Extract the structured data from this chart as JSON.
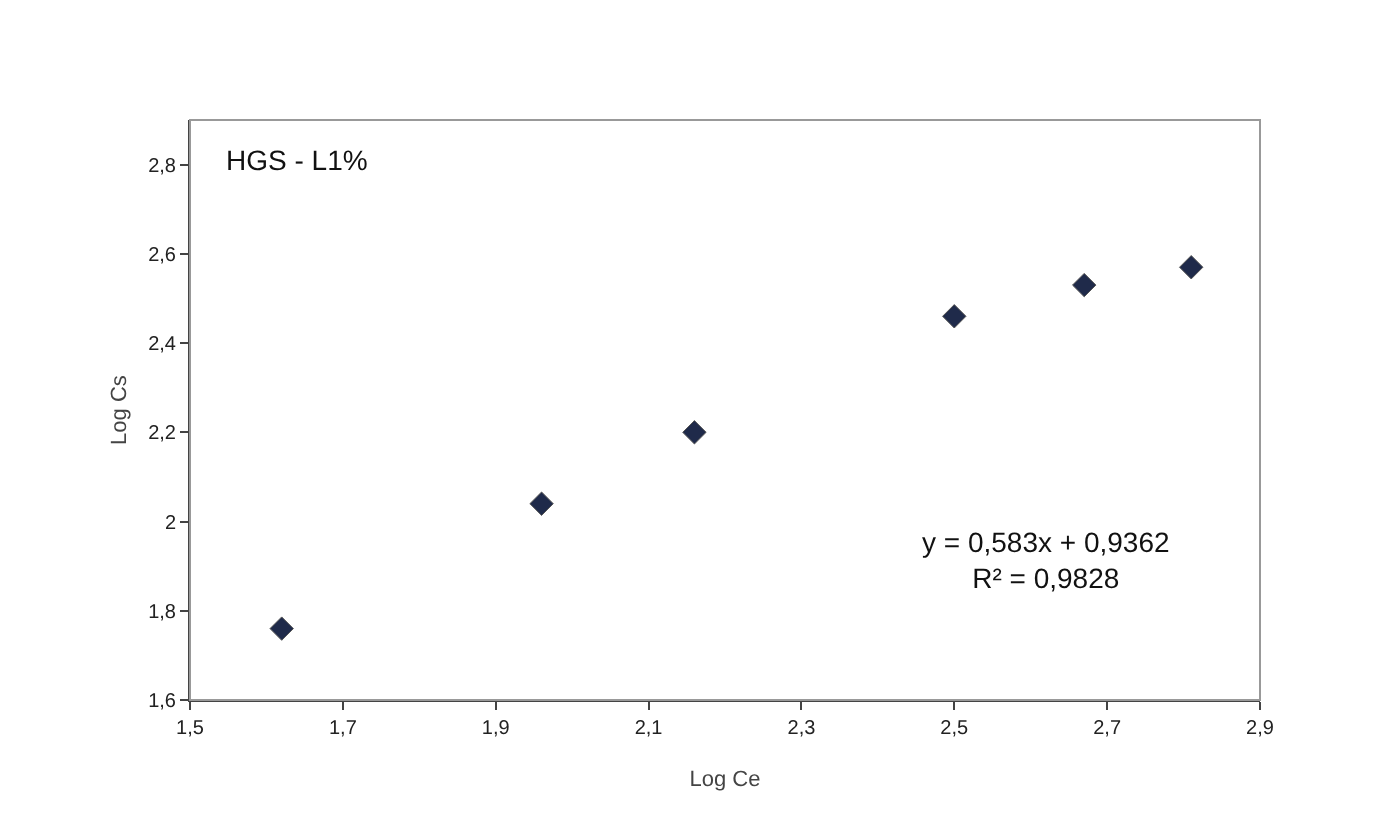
{
  "chart_data": {
    "type": "scatter",
    "xlabel": "Log Ce",
    "ylabel": "Log Cs",
    "annotations": [
      "HGS - L1%",
      "y = 0,583x + 0,9362",
      "R² = 0,9828"
    ],
    "x": [
      1.62,
      1.96,
      2.16,
      2.5,
      2.67,
      2.81
    ],
    "series": [
      {
        "color": "#1f2a4a",
        "values": [
          1.76,
          2.04,
          2.2,
          2.46,
          2.53,
          2.57
        ]
      }
    ],
    "xlim": [
      1.5,
      2.9
    ],
    "xticks": [
      {
        "value": 1.5,
        "label": "1,5"
      },
      {
        "value": 1.7,
        "label": "1,7"
      },
      {
        "value": 1.9,
        "label": "1,9"
      },
      {
        "value": 2.1,
        "label": "2,1"
      },
      {
        "value": 2.3,
        "label": "2,3"
      },
      {
        "value": 2.5,
        "label": "2,5"
      },
      {
        "value": 2.7,
        "label": "2,7"
      },
      {
        "value": 2.9,
        "label": "2,9"
      }
    ],
    "ylim": [
      1.6,
      2.9
    ],
    "yticks": [
      {
        "value": 1.6,
        "label": "1,6"
      },
      {
        "value": 1.8,
        "label": "1,8"
      },
      2,
      {
        "value": 2.2,
        "label": "2,2"
      },
      {
        "value": 2.4,
        "label": "2,4"
      },
      {
        "value": 2.6,
        "label": "2,6"
      },
      {
        "value": 2.8,
        "label": "2,8"
      }
    ],
    "grid": false,
    "marker": "diamond"
  }
}
